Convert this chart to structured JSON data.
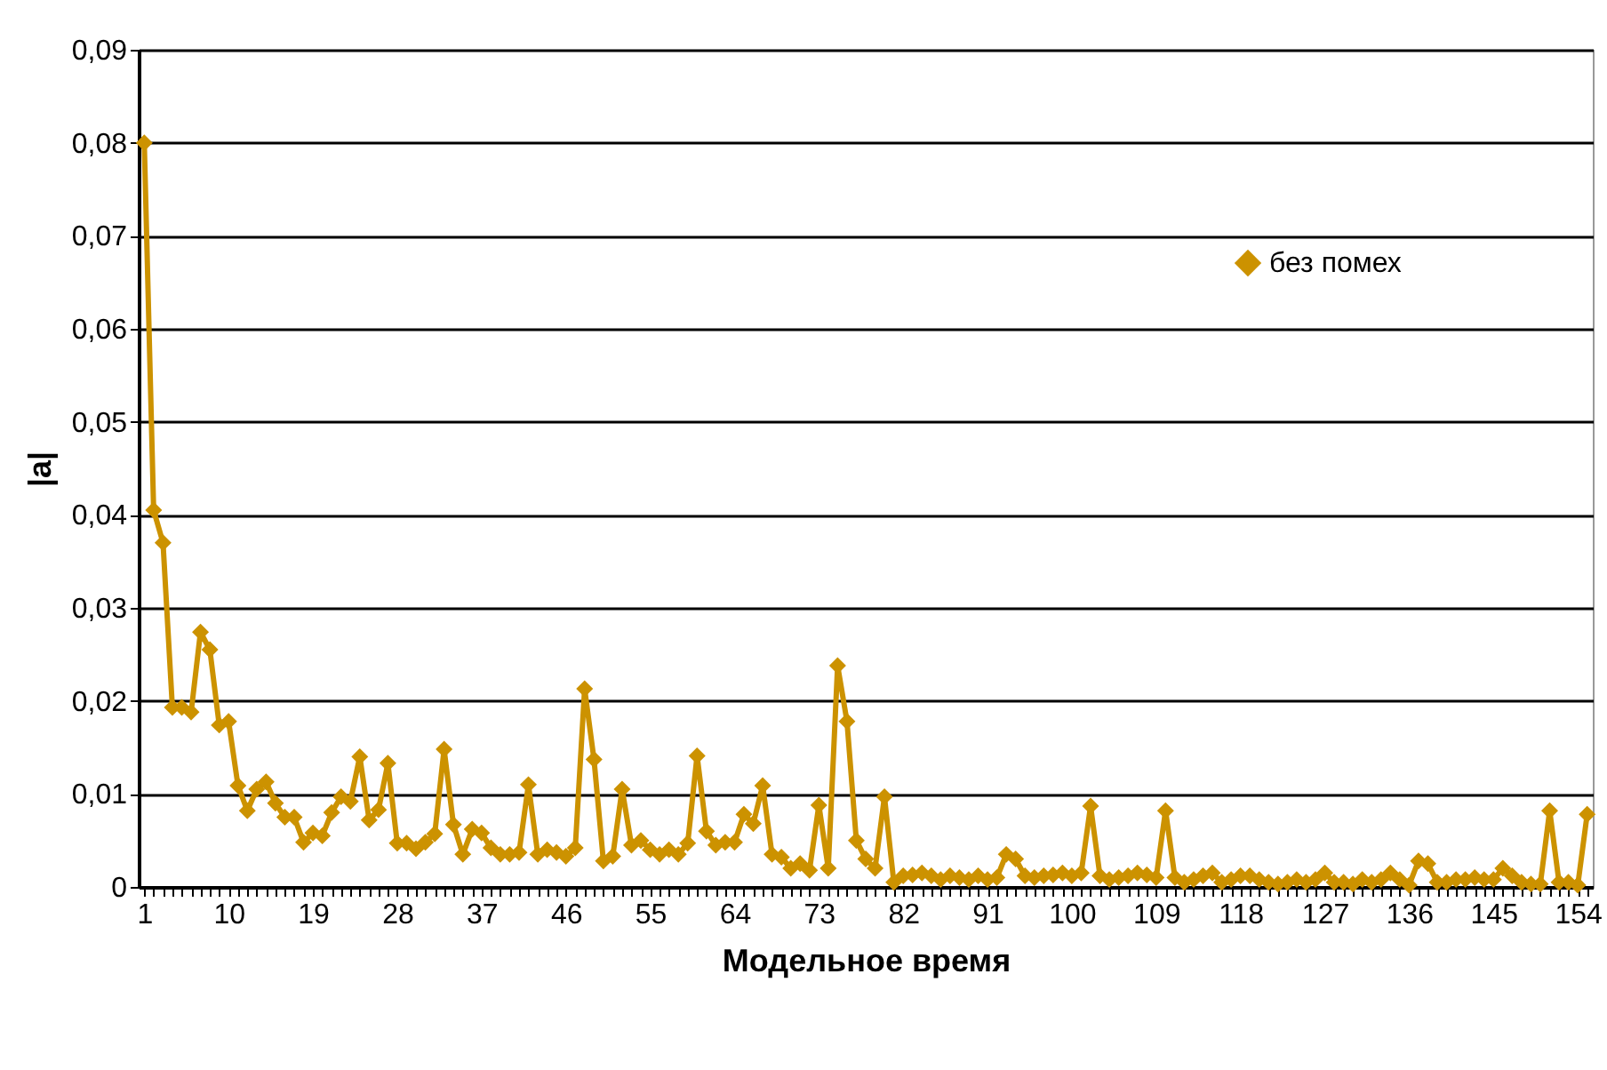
{
  "chart_data": {
    "type": "line",
    "xlabel": "Модельное время",
    "ylabel": "|a|",
    "categories": [
      "1",
      null,
      null,
      null,
      null,
      null,
      null,
      null,
      null,
      "10",
      null,
      null,
      null,
      null,
      null,
      null,
      null,
      null,
      "19",
      null,
      null,
      null,
      null,
      null,
      null,
      null,
      null,
      "28",
      null,
      null,
      null,
      null,
      null,
      null,
      null,
      null,
      "37",
      null,
      null,
      null,
      null,
      null,
      null,
      null,
      null,
      "46",
      null,
      null,
      null,
      null,
      null,
      null,
      null,
      null,
      "55",
      null,
      null,
      null,
      null,
      null,
      null,
      null,
      null,
      "64",
      null,
      null,
      null,
      null,
      null,
      null,
      null,
      null,
      "73",
      null,
      null,
      null,
      null,
      null,
      null,
      null,
      null,
      "82",
      null,
      null,
      null,
      null,
      null,
      null,
      null,
      null,
      "91",
      null,
      null,
      null,
      null,
      null,
      null,
      null,
      null,
      "100",
      null,
      null,
      null,
      null,
      null,
      null,
      null,
      null,
      "109",
      null,
      null,
      null,
      null,
      null,
      null,
      null,
      null,
      "118",
      null,
      null,
      null,
      null,
      null,
      null,
      null,
      null,
      "127",
      null,
      null,
      null,
      null,
      null,
      null,
      null,
      null,
      "136",
      null,
      null,
      null,
      null,
      null,
      null,
      null,
      null,
      "145",
      null,
      null,
      null,
      null,
      null,
      null,
      null,
      null,
      "154",
      null
    ],
    "series": [
      {
        "name": "без помех",
        "color": "#cc9200",
        "values": [
          0.08,
          0.0405,
          0.037,
          0.0193,
          0.0193,
          0.0188,
          0.0274,
          0.0255,
          0.0174,
          0.0178,
          0.0109,
          0.0082,
          0.0105,
          0.0113,
          0.009,
          0.0075,
          0.0075,
          0.0048,
          0.0058,
          0.0055,
          0.008,
          0.0097,
          0.0092,
          0.014,
          0.0072,
          0.0083,
          0.0133,
          0.0047,
          0.0047,
          0.0041,
          0.0048,
          0.0057,
          0.0148,
          0.0067,
          0.0035,
          0.0062,
          0.0058,
          0.0042,
          0.0035,
          0.0035,
          0.0037,
          0.011,
          0.0035,
          0.004,
          0.0037,
          0.0033,
          0.0042,
          0.0213,
          0.0137,
          0.0028,
          0.0033,
          0.0105,
          0.0045,
          0.005,
          0.004,
          0.0035,
          0.004,
          0.0035,
          0.0047,
          0.0141,
          0.006,
          0.0045,
          0.0048,
          0.0048,
          0.0078,
          0.0068,
          0.0109,
          0.0035,
          0.0032,
          0.002,
          0.0025,
          0.0018,
          0.0088,
          0.002,
          0.0238,
          0.0178,
          0.005,
          0.003,
          0.002,
          0.0097,
          0.0005,
          0.0012,
          0.0013,
          0.0015,
          0.0012,
          0.0008,
          0.0012,
          0.001,
          0.0008,
          0.0012,
          0.0008,
          0.001,
          0.0035,
          0.003,
          0.0012,
          0.001,
          0.0012,
          0.0013,
          0.0015,
          0.0012,
          0.0015,
          0.0087,
          0.0012,
          0.0008,
          0.001,
          0.0012,
          0.0015,
          0.0013,
          0.001,
          0.0082,
          0.001,
          0.0005,
          0.0008,
          0.0012,
          0.0015,
          0.0005,
          0.0008,
          0.0012,
          0.0012,
          0.0008,
          0.0005,
          0.0003,
          0.0005,
          0.0008,
          0.0005,
          0.0008,
          0.0015,
          0.0005,
          0.0005,
          0.0003,
          0.0008,
          0.0005,
          0.0008,
          0.0015,
          0.0008,
          0.0002,
          0.0028,
          0.0025,
          0.0005,
          0.0005,
          0.0008,
          0.0008,
          0.001,
          0.0008,
          0.0008,
          0.002,
          0.0012,
          0.0005,
          0.0003,
          0.0003,
          0.0082,
          0.0005,
          0.0005,
          0.0002,
          0.0078
        ]
      }
    ],
    "ylim": [
      0,
      0.09
    ],
    "yticks": [
      0,
      {
        "value": 0.01,
        "label": "0,01"
      },
      {
        "value": 0.02,
        "label": "0,02"
      },
      {
        "value": 0.03,
        "label": "0,03"
      },
      {
        "value": 0.04,
        "label": "0,04"
      },
      {
        "value": 0.05,
        "label": "0,05"
      },
      {
        "value": 0.06,
        "label": "0,06"
      },
      {
        "value": 0.07,
        "label": "0,07"
      },
      {
        "value": 0.08,
        "label": "0,08"
      },
      {
        "value": 0.09,
        "label": "0,09"
      }
    ],
    "grid": "y",
    "legend": "top right",
    "marker": "diamond",
    "line_style": "solid"
  }
}
